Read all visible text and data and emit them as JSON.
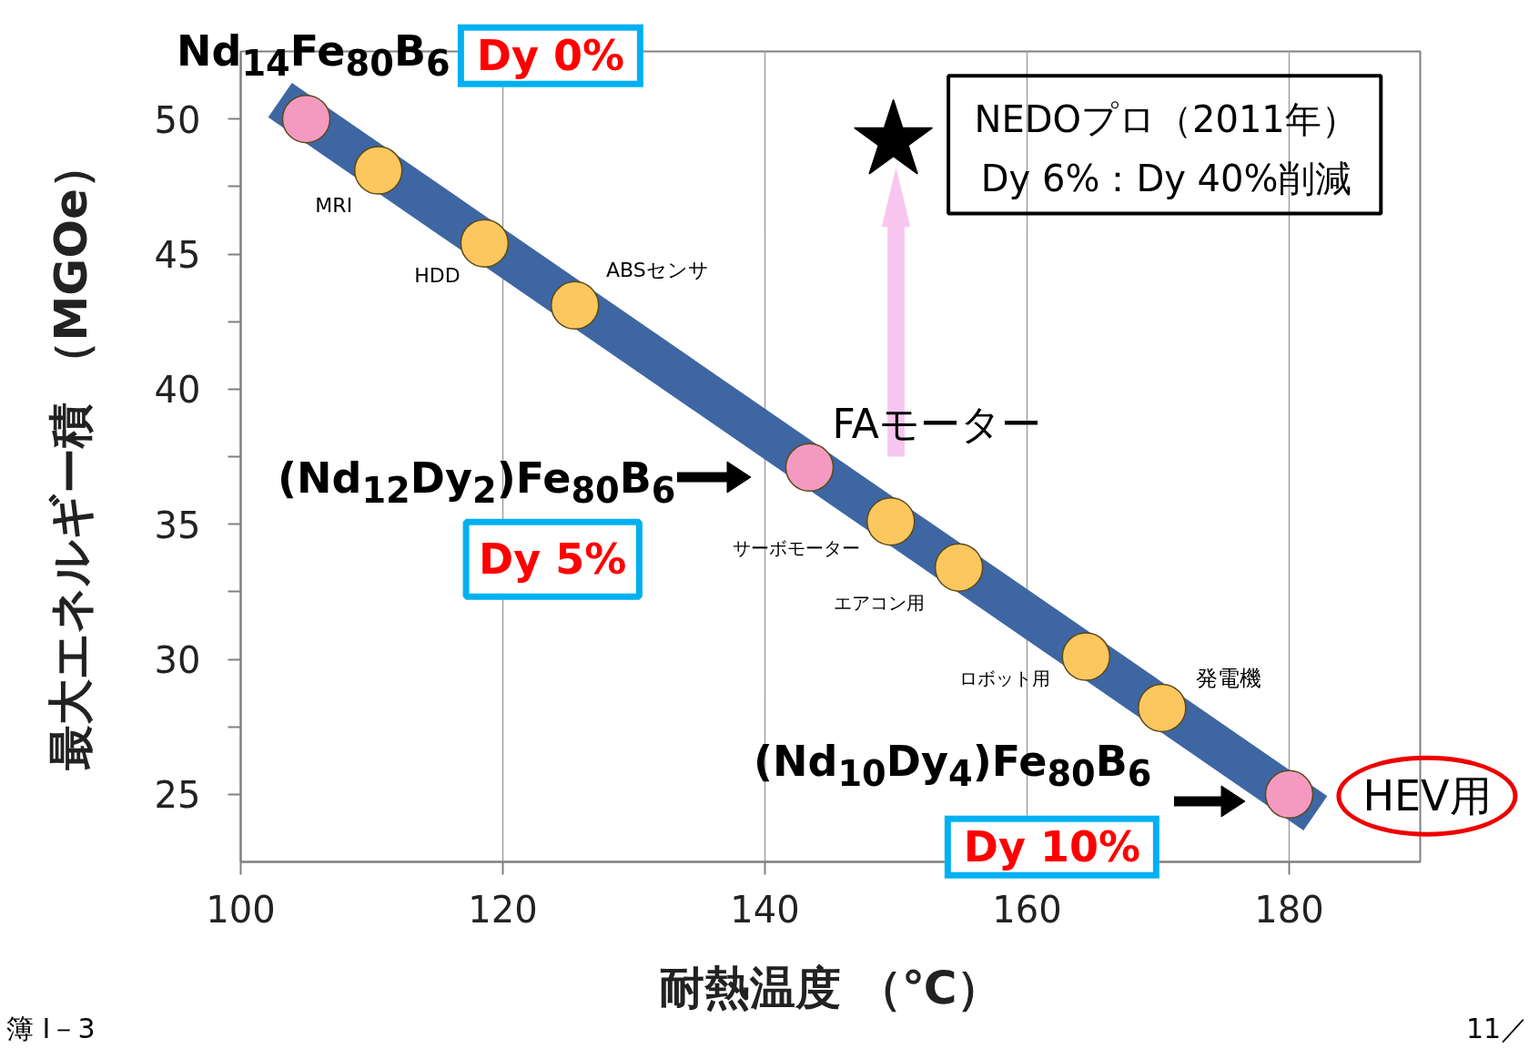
{
  "chart_data": {
    "type": "scatter",
    "xlabel": "耐熱温度 （℃）",
    "ylabel": "最大エネルギー積 （MGOe）",
    "xlim": [
      100,
      190
    ],
    "ylim": [
      22.5,
      52.5
    ],
    "xticks": [
      100,
      120,
      140,
      160,
      180
    ],
    "yticks": [
      25,
      {
        "value": 27.5,
        "label": null
      },
      30,
      {
        "value": 32.5,
        "label": null
      },
      35,
      {
        "value": 37.5,
        "label": null
      },
      40,
      {
        "value": 42.5,
        "label": null
      },
      45,
      {
        "value": 47.5,
        "label": null
      },
      50
    ],
    "grid": "x",
    "series": [
      {
        "type": "line",
        "x": [
          103,
          182
        ],
        "values": [
          50.7,
          24.3
        ],
        "color": "#3e66a3",
        "line_style": "solid",
        "marker": "none"
      },
      {
        "x": [
          105.0,
          110.5,
          118.6,
          125.5,
          143.4,
          149.6,
          154.8,
          164.5,
          170.3,
          180.0
        ],
        "values": [
          50.0,
          48.1,
          45.4,
          43.1,
          37.1,
          35.1,
          33.4,
          30.1,
          28.2,
          25.0
        ],
        "colors": [
          "#f49ac1",
          "#fcc75e",
          "#fcc75e",
          "#fcc75e",
          "#f49ac1",
          "#fcc75e",
          "#fcc75e",
          "#fcc75e",
          "#fcc75e",
          "#f49ac1"
        ],
        "marker": "circle"
      },
      {
        "type": "scatter",
        "x": [
          149.8
        ],
        "values": [
          49.2
        ],
        "color": "#000000",
        "marker": "star"
      }
    ],
    "annotations": [
      "Nd$_{14}$Fe$_{80}$B$_{6}$",
      "Dy 0%",
      "MRI",
      "HDD",
      "ABSセンサ",
      "FAモーター",
      "(Nd$_{12}$Dy$_{2}$)Fe$_{80}$B$_{6}$",
      "Dy 5%",
      "サーボモーター",
      "エアコン用",
      "ロボット用",
      "発電機",
      "(Nd$_{10}$Dy$_{4}$)Fe$_{80}$B$_{6}$",
      "Dy 10%",
      "HEV用",
      "NEDOプロ（2011年）",
      "Dy 6%：Dy 40%削減",
      "簿 Ⅰ－3",
      "11／"
    ]
  }
}
